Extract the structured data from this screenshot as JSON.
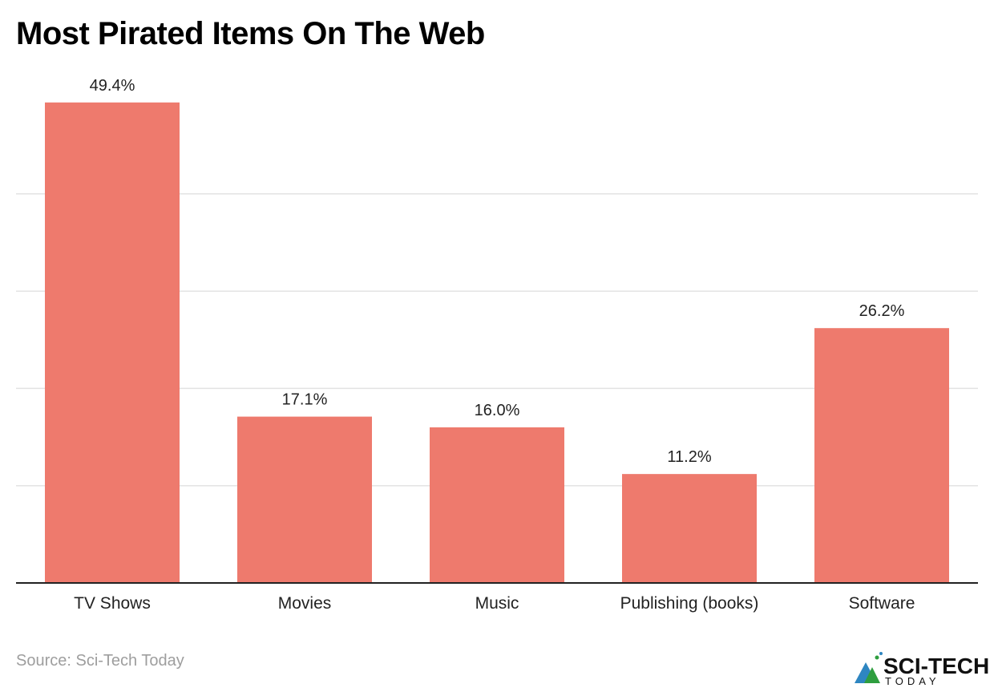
{
  "chart_data": {
    "type": "bar",
    "title": "Most Pirated Items On The Web",
    "categories": [
      "TV Shows",
      "Movies",
      "Music",
      "Publishing (books)",
      "Software"
    ],
    "values": [
      49.4,
      17.1,
      16.0,
      11.2,
      26.2
    ],
    "data_labels": [
      "49.4%",
      "17.1%",
      "16.0%",
      "11.2%",
      "26.2%"
    ],
    "xlabel": "",
    "ylabel": "",
    "ylim": [
      0,
      50
    ],
    "gridlines": [
      10,
      20,
      30,
      40
    ],
    "grid": true,
    "bar_color": "#ee7a6d"
  },
  "source": "Source: Sci-Tech Today",
  "logo": {
    "line1": "SCI-TECH",
    "line2": "TODAY"
  }
}
